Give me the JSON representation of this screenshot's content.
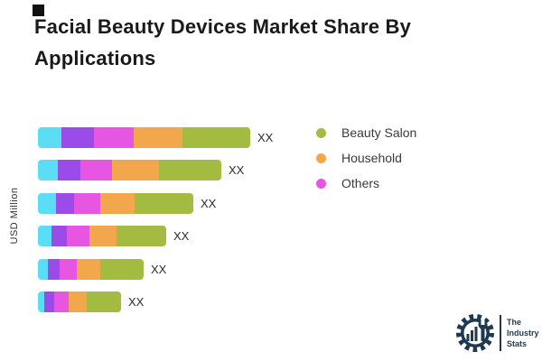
{
  "title": "Facial Beauty Devices Market Share By Applications",
  "y_axis_label": "USD Million",
  "legend": {
    "items": [
      {
        "label": "Beauty Salon",
        "color": "#a4bb41"
      },
      {
        "label": "Household",
        "color": "#f3a74c"
      },
      {
        "label": "Others",
        "color": "#e656e2"
      }
    ]
  },
  "chart_data": {
    "type": "bar",
    "orientation": "horizontal",
    "stacked": true,
    "title": "Facial Beauty Devices Market Share By Applications",
    "xlabel": "",
    "ylabel": "USD Million",
    "categories": [
      "",
      "",
      "",
      "",
      "",
      ""
    ],
    "value_labels": [
      "XX",
      "XX",
      "XX",
      "XX",
      "XX",
      "XX"
    ],
    "series": [
      {
        "name": "",
        "color": "#5bdef5",
        "values": [
          26,
          22,
          20,
          15,
          11,
          7
        ]
      },
      {
        "name": "",
        "color": "#9b4be8",
        "values": [
          36,
          25,
          20,
          17,
          13,
          11
        ]
      },
      {
        "name": "Others",
        "color": "#e656e2",
        "values": [
          44,
          35,
          29,
          25,
          19,
          16
        ]
      },
      {
        "name": "Household",
        "color": "#f3a74c",
        "values": [
          54,
          52,
          38,
          30,
          26,
          20
        ]
      },
      {
        "name": "Beauty Salon",
        "color": "#a4bb41",
        "values": [
          75,
          69,
          65,
          55,
          48,
          38
        ]
      }
    ],
    "note": "numeric values hidden, shown as XX placeholders; widths are relative px estimates",
    "legend_position": "right-top",
    "grid": false
  },
  "logo": {
    "line1": "The",
    "line2": "Industry",
    "line3": "Stats"
  }
}
